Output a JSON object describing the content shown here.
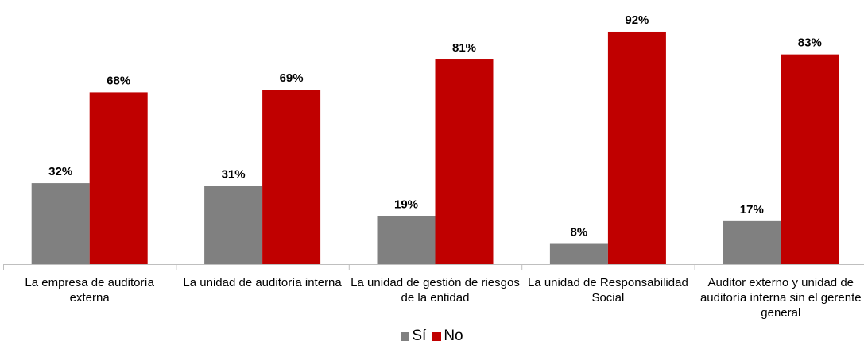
{
  "chart_data": {
    "type": "bar",
    "categories": [
      "La empresa de auditoría externa",
      "La unidad de auditoría interna",
      "La unidad de gestión de riesgos de la entidad",
      "La unidad de Responsabilidad Social",
      "Auditor externo y unidad de auditoría interna sin el gerente general"
    ],
    "series": [
      {
        "name": "Sí",
        "color": "#808080",
        "values": [
          32,
          31,
          19,
          8,
          17
        ],
        "value_labels": [
          "32%",
          "31%",
          "19%",
          "8%",
          "17%"
        ]
      },
      {
        "name": "No",
        "color": "#c00000",
        "values": [
          68,
          69,
          81,
          92,
          83
        ],
        "value_labels": [
          "68%",
          "69%",
          "81%",
          "92%",
          "83%"
        ]
      }
    ],
    "ylim": [
      0,
      100
    ],
    "legend": "bottom"
  }
}
